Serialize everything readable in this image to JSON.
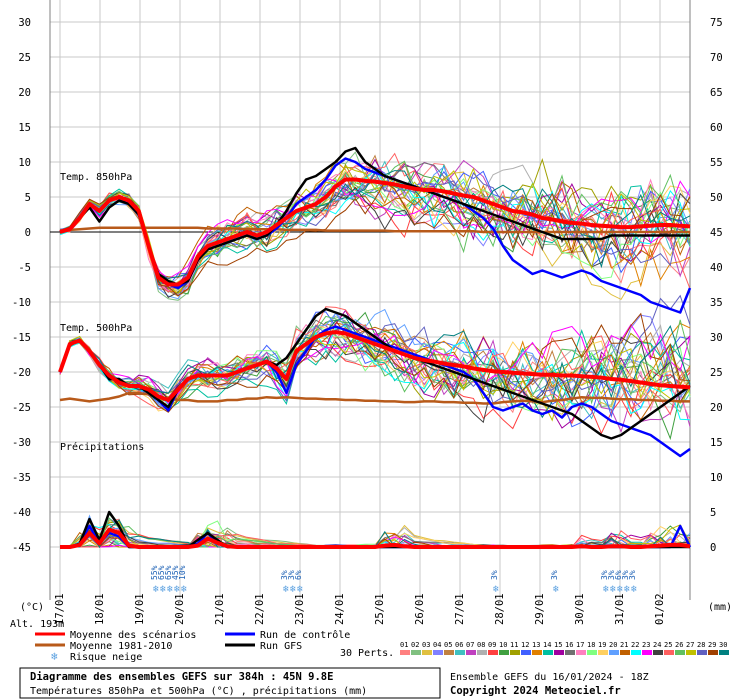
{
  "chart_data": {
    "type": "line",
    "left_axis": {
      "unit": "(°C)",
      "ticks": [
        "30",
        "25",
        "20",
        "15",
        "10",
        "5",
        "0",
        "-5",
        "-10",
        "-15",
        "-20",
        "-25",
        "-30",
        "-35",
        "-40",
        "-45"
      ]
    },
    "right_axis": {
      "unit": "(mm)",
      "ticks": [
        "75",
        "70",
        "65",
        "60",
        "55",
        "50",
        "45",
        "40",
        "35",
        "30",
        "25",
        "20",
        "15",
        "10",
        "5",
        "0"
      ]
    },
    "x_dates": [
      "17/01",
      "18/01",
      "19/01",
      "20/01",
      "21/01",
      "22/01",
      "23/01",
      "24/01",
      "25/01",
      "26/01",
      "27/01",
      "28/01",
      "29/01",
      "30/01",
      "31/01",
      "01/02"
    ],
    "panel_labels": {
      "t850": "Temp. 850hPa",
      "t500": "Temp. 500hPa",
      "precip": "Précipitations"
    },
    "altitude_label": "Alt. 193m",
    "snow_risk": [
      {
        "date_index": 2.35,
        "labels": [
          "55%",
          "65%",
          "65%",
          "45%",
          "10%"
        ]
      },
      {
        "date_index": 5.6,
        "labels": [
          "3%",
          "3%",
          "6%"
        ]
      },
      {
        "date_index": 10.85,
        "labels": [
          "3%"
        ]
      },
      {
        "date_index": 12.35,
        "labels": [
          "3%"
        ]
      },
      {
        "date_index": 13.6,
        "labels": [
          "3%",
          "3%",
          "6%",
          "3%",
          "3%"
        ]
      }
    ],
    "x_hours": [
      0,
      6,
      12,
      18,
      24,
      30,
      36,
      42,
      48,
      54,
      60,
      66,
      72,
      78,
      84,
      90,
      96,
      102,
      108,
      114,
      120,
      126,
      132,
      138,
      144,
      150,
      156,
      162,
      168,
      174,
      180,
      186,
      192,
      198,
      204,
      210,
      216,
      222,
      228,
      234,
      240,
      246,
      252,
      258,
      264,
      270,
      276,
      282,
      288,
      294,
      300,
      306,
      312,
      318,
      324,
      330,
      336,
      342,
      348,
      354,
      360,
      366,
      372,
      378,
      384
    ],
    "series_t850": [
      {
        "name": "Moyenne des scénarios",
        "color": "#ff0000",
        "values": [
          0,
          0.4,
          2,
          4,
          3,
          4.5,
          5,
          4.5,
          3,
          -2,
          -6.5,
          -7.5,
          -7.5,
          -6.5,
          -3.5,
          -2,
          -1.5,
          -1,
          -0.5,
          0,
          -0.5,
          0,
          1,
          2,
          3,
          3.5,
          4,
          5,
          6.5,
          7.5,
          7.5,
          7.3,
          7.2,
          7,
          6.8,
          6.5,
          6.2,
          6,
          6,
          5.8,
          5.5,
          5.2,
          5,
          4.5,
          4,
          3.5,
          3,
          2.8,
          2.5,
          2,
          1.8,
          1.5,
          1.3,
          1.2,
          1,
          0.9,
          0.8,
          0.7,
          0.7,
          0.8,
          0.9,
          1,
          1,
          0.9,
          0.8
        ]
      },
      {
        "name": "Moyenne 1981-2010",
        "color": "#b85a1a",
        "values": [
          0.2,
          0.3,
          0.4,
          0.5,
          0.6,
          0.6,
          0.6,
          0.6,
          0.6,
          0.6,
          0.6,
          0.6,
          0.6,
          0.6,
          0.6,
          0.5,
          0.5,
          0.5,
          0.5,
          0.4,
          0.4,
          0.4,
          0.4,
          0.3,
          0.3,
          0.3,
          0.3,
          0.2,
          0.2,
          0.2,
          0.2,
          0.2,
          0.2,
          0.2,
          0.1,
          0.1,
          0.1,
          0.1,
          0.1,
          0.1,
          0.1,
          0.1,
          0.1,
          0,
          0,
          0,
          0,
          0,
          0,
          0,
          0,
          0,
          0,
          0,
          0,
          0,
          0,
          0,
          0,
          0,
          0,
          0,
          0,
          0,
          0
        ]
      },
      {
        "name": "Run de contrôle",
        "color": "#0000ff",
        "values": [
          0,
          0.5,
          2,
          4,
          3,
          4.5,
          5,
          4.5,
          3,
          -2,
          -6,
          -7.5,
          -8,
          -7,
          -4,
          -2.5,
          -2,
          -1.5,
          -1,
          -0.5,
          -1,
          -0.5,
          0.5,
          2,
          4,
          5,
          6,
          7.5,
          9.5,
          10.5,
          10,
          9,
          8.5,
          8,
          7.5,
          7,
          6.5,
          6,
          5.5,
          5,
          4.5,
          4,
          3,
          2,
          0.5,
          -2,
          -4,
          -5,
          -6,
          -5.5,
          -6,
          -6.5,
          -6,
          -5.5,
          -6,
          -7,
          -7.5,
          -8,
          -8.5,
          -9,
          -10,
          -10.5,
          -11,
          -11.5,
          -8
        ]
      },
      {
        "name": "Run GFS",
        "color": "#000000",
        "values": [
          0,
          0.5,
          2,
          3.5,
          1.5,
          3.5,
          4.5,
          4,
          2.5,
          -2,
          -6,
          -7,
          -7.5,
          -7,
          -4,
          -2.5,
          -2,
          -1.5,
          -1,
          -0.5,
          -1,
          -0.5,
          1,
          3,
          5.5,
          7.5,
          8,
          9,
          10,
          11.5,
          12,
          10,
          9,
          8,
          7.5,
          7,
          6.5,
          6,
          5.5,
          5,
          4.5,
          4,
          3.5,
          3,
          2.5,
          2,
          1.5,
          1,
          0.5,
          0,
          -0.5,
          -1,
          -1,
          -1,
          -1,
          -1,
          -0.5,
          -0.5,
          -0.5,
          -0.5,
          -0.5,
          -0.5,
          -0.5,
          -0.5,
          -0.5
        ]
      }
    ],
    "series_t500": [
      {
        "name": "Moyenne des scénarios",
        "color": "#ff0000",
        "values": [
          -20,
          -16,
          -15.5,
          -17,
          -19,
          -20.5,
          -21.5,
          -22,
          -22,
          -22.5,
          -23.5,
          -24,
          -22.5,
          -21,
          -20.5,
          -20.5,
          -20.5,
          -20.5,
          -20,
          -19.5,
          -19,
          -18.5,
          -19.5,
          -21,
          -17,
          -16,
          -15,
          -14.5,
          -14.3,
          -14.5,
          -15,
          -15.5,
          -16,
          -16.5,
          -17,
          -17.5,
          -18,
          -18.3,
          -18.5,
          -18.8,
          -19,
          -19.2,
          -19.5,
          -19.7,
          -19.9,
          -20,
          -20.1,
          -20.2,
          -20.3,
          -20.4,
          -20.4,
          -20.5,
          -20.5,
          -20.6,
          -20.7,
          -20.8,
          -21,
          -21.1,
          -21.3,
          -21.5,
          -21.7,
          -21.9,
          -22,
          -22.1,
          -22.2
        ]
      },
      {
        "name": "Moyenne 1981-2010",
        "color": "#b85a1a",
        "values": [
          -24,
          -23.8,
          -24,
          -24.2,
          -24,
          -23.8,
          -23.5,
          -23,
          -23,
          -23.2,
          -23.5,
          -23.8,
          -24,
          -24,
          -24.2,
          -24.2,
          -24.2,
          -24,
          -24,
          -23.8,
          -23.8,
          -23.6,
          -23.7,
          -23.6,
          -23.7,
          -23.8,
          -23.8,
          -23.9,
          -23.9,
          -24,
          -24,
          -24.1,
          -24.1,
          -24.2,
          -24.2,
          -24.3,
          -24.3,
          -24.2,
          -24.2,
          -24.3,
          -24.3,
          -24.4,
          -24.4,
          -24.5,
          -24.5,
          -24.3,
          -24.2,
          -24.1,
          -24.2,
          -24.3,
          -24.1,
          -24,
          -23.8,
          -23.6,
          -23.7,
          -23.7,
          -23.8,
          -23.9,
          -23.9,
          -24,
          -24,
          -24.1,
          -24.1,
          -24.2,
          -24.2
        ]
      },
      {
        "name": "Run de contrôle",
        "color": "#0000ff",
        "values": [
          -20,
          -16,
          -15.5,
          -17,
          -19,
          -21,
          -21,
          -22,
          -22,
          -23,
          -24,
          -25.5,
          -22.5,
          -21,
          -20.5,
          -20.5,
          -20.5,
          -20.5,
          -20,
          -19.5,
          -19,
          -18.5,
          -20,
          -23,
          -19,
          -17,
          -15,
          -14,
          -13.5,
          -14,
          -14.5,
          -15,
          -15.5,
          -16,
          -16.5,
          -17,
          -17.5,
          -18,
          -18.5,
          -19,
          -19.5,
          -20,
          -21,
          -23,
          -25,
          -25.5,
          -25,
          -24.5,
          -25.5,
          -26,
          -25.5,
          -26.5,
          -25,
          -24.5,
          -25,
          -26,
          -27,
          -27.5,
          -28,
          -28.5,
          -29,
          -30,
          -31,
          -32,
          -31
        ]
      },
      {
        "name": "Run GFS",
        "color": "#000000",
        "values": [
          -20,
          -16,
          -15.5,
          -17,
          -19,
          -21,
          -21,
          -22,
          -22,
          -23,
          -24,
          -25,
          -22.5,
          -21,
          -20.5,
          -20.5,
          -20.5,
          -20.5,
          -20,
          -19.5,
          -19,
          -18.5,
          -19,
          -18,
          -16,
          -14,
          -12,
          -11,
          -11.5,
          -12,
          -13,
          -14,
          -15,
          -16,
          -17,
          -17.5,
          -18,
          -18.5,
          -19,
          -19.5,
          -20,
          -20.5,
          -21,
          -21.5,
          -22,
          -22.5,
          -23,
          -23.5,
          -24,
          -24.5,
          -25,
          -25.5,
          -26,
          -27,
          -28,
          -29,
          -29.5,
          -29,
          -28,
          -27,
          -26,
          -25,
          -24,
          -23,
          -22
        ]
      }
    ],
    "series_precip": [
      {
        "name": "Moyenne des scénarios",
        "color": "#ff0000",
        "values": [
          0,
          0,
          0.3,
          2,
          0.5,
          2.5,
          2,
          0.2,
          0,
          0,
          0,
          0,
          0,
          0,
          0.2,
          1.2,
          0.6,
          0.1,
          0,
          0,
          0,
          0,
          0,
          0,
          0,
          0,
          0,
          0,
          0,
          0,
          0,
          0,
          0,
          0.2,
          0.3,
          0.1,
          0,
          0,
          0,
          0,
          0,
          0,
          0,
          0,
          0,
          0,
          0,
          0,
          0,
          0,
          0,
          0,
          0,
          0.1,
          0,
          0,
          0.1,
          0.1,
          0,
          0,
          0.1,
          0.2,
          0.3,
          0.3,
          0.1
        ]
      },
      {
        "name": "Run de contrôle",
        "color": "#0000ff",
        "values": [
          0,
          0,
          0.5,
          3,
          0.5,
          2,
          1.5,
          0,
          0,
          0,
          0,
          0,
          0,
          0,
          0.5,
          2,
          0.5,
          0,
          0,
          0,
          0,
          0,
          0,
          0,
          0,
          0,
          0,
          0,
          0,
          0,
          0,
          0,
          0,
          0,
          0,
          0,
          0,
          0,
          0,
          0,
          0,
          0,
          0,
          0,
          0,
          0,
          0,
          0,
          0,
          0,
          0,
          0,
          0,
          0,
          0,
          0,
          0,
          0,
          0,
          0,
          0,
          0,
          0,
          3,
          0
        ]
      },
      {
        "name": "Run GFS",
        "color": "#000000",
        "values": [
          0,
          0,
          0.5,
          4,
          1,
          5,
          3,
          0,
          0,
          0,
          0,
          0,
          0,
          0,
          1,
          2,
          1,
          0,
          0,
          0,
          0,
          0,
          0,
          0,
          0,
          0,
          0,
          0,
          0,
          0,
          0,
          0,
          0,
          0,
          0,
          0,
          0,
          0,
          0,
          0,
          0,
          0,
          0,
          0,
          0,
          0,
          0,
          0,
          0,
          0,
          0,
          0,
          0,
          0,
          0,
          0,
          0,
          0,
          0,
          0,
          0,
          0,
          0,
          0,
          0
        ]
      }
    ]
  },
  "legend": {
    "items": [
      {
        "label": "Moyenne des scénarios",
        "color": "#ff0000",
        "kind": "line"
      },
      {
        "label": "Run de contrôle",
        "color": "#0000ff",
        "kind": "line"
      },
      {
        "label": "Moyenne 1981-2010",
        "color": "#b85a1a",
        "kind": "line"
      },
      {
        "label": "Run GFS",
        "color": "#000000",
        "kind": "line"
      },
      {
        "label": "Risque neige",
        "color": "#5aa0e0",
        "kind": "snow"
      }
    ],
    "perts_label": "30 Perts.",
    "pert_numbers": [
      "01",
      "02",
      "03",
      "04",
      "05",
      "06",
      "07",
      "08",
      "09",
      "10",
      "11",
      "12",
      "13",
      "14",
      "15",
      "16",
      "17",
      "18",
      "19",
      "20",
      "21",
      "22",
      "23",
      "24",
      "25",
      "26",
      "27",
      "28",
      "29",
      "30"
    ],
    "pert_colors": [
      "#ff8080",
      "#80c080",
      "#e0c040",
      "#8080ff",
      "#c08040",
      "#40c0c0",
      "#c040c0",
      "#b0b0b0",
      "#ff4040",
      "#40a040",
      "#a0a000",
      "#4060ff",
      "#e08000",
      "#00c0a0",
      "#a000a0",
      "#707070",
      "#ff80c0",
      "#80ff80",
      "#ffd060",
      "#60a0ff",
      "#c06000",
      "#00ffff",
      "#ff00ff",
      "#404040",
      "#ff6060",
      "#60c060",
      "#c0c000",
      "#6060c0",
      "#a04000",
      "#008080"
    ]
  },
  "footer": {
    "line1": "Diagramme des ensembles GEFS sur 384h : 45N 9.8E",
    "line2": "Températures 850hPa et 500hPa (°C) , précipitations (mm)",
    "run_info": "Ensemble GEFS du 16/01/2024 - 18Z",
    "copyright": "Copyright 2024 Meteociel.fr"
  }
}
